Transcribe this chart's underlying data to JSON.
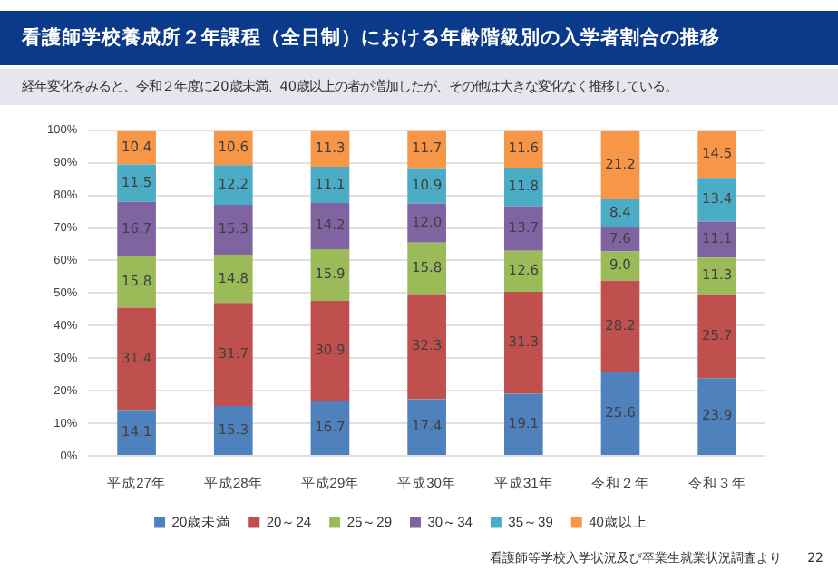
{
  "chart_data": {
    "type": "bar",
    "title": "看護師学校養成所２年課程（全日制）における年齢階級別の入学者割合の推移",
    "subtitle": "経年変化をみると、令和２年度に20歳未満、40歳以上の者が増加したが、その他は大きな変化なく推移している。",
    "categories": [
      "平成27年",
      "平成28年",
      "平成29年",
      "平成30年",
      "平成31年",
      "令和２年",
      "令和３年"
    ],
    "stacked": true,
    "grid": "y",
    "legend": "bottom",
    "ylim": [
      0,
      100
    ],
    "yticks": [
      {
        "value": 0,
        "label": "0%"
      },
      {
        "value": 10,
        "label": "10%"
      },
      {
        "value": 20,
        "label": "20%"
      },
      {
        "value": 30,
        "label": "30%"
      },
      {
        "value": 40,
        "label": "40%"
      },
      {
        "value": 50,
        "label": "50%"
      },
      {
        "value": 60,
        "label": "60%"
      },
      {
        "value": 70,
        "label": "70%"
      },
      {
        "value": 80,
        "label": "80%"
      },
      {
        "value": 90,
        "label": "90%"
      },
      {
        "value": 100,
        "label": "100%"
      }
    ],
    "series": [
      {
        "name": "20歳未満",
        "color": "#4f81bd",
        "values": [
          14.1,
          15.3,
          16.7,
          17.4,
          19.1,
          25.6,
          23.9
        ],
        "value_labels": [
          "14.1",
          "15.3",
          "16.7",
          "17.4",
          "19.1",
          "25.6",
          "23.9"
        ]
      },
      {
        "name": "20～24",
        "color": "#c0504d",
        "values": [
          31.4,
          31.7,
          30.9,
          32.3,
          31.3,
          28.2,
          25.7
        ],
        "value_labels": [
          "31.4",
          "31.7",
          "30.9",
          "32.3",
          "31.3",
          "28.2",
          "25.7"
        ]
      },
      {
        "name": "25～29",
        "color": "#9bbb59",
        "values": [
          15.8,
          14.8,
          15.9,
          15.8,
          12.6,
          9.0,
          11.3
        ],
        "value_labels": [
          "15.8",
          "14.8",
          "15.9",
          "15.8",
          "12.6",
          "9.0",
          "11.3"
        ]
      },
      {
        "name": "30～34",
        "color": "#8064a2",
        "values": [
          16.7,
          15.3,
          14.2,
          12.0,
          13.7,
          7.6,
          11.1
        ],
        "value_labels": [
          "16.7",
          "15.3",
          "14.2",
          "12.0",
          "13.7",
          "7.6",
          "11.1"
        ]
      },
      {
        "name": "35～39",
        "color": "#4bacc6",
        "values": [
          11.5,
          12.2,
          11.1,
          10.9,
          11.8,
          8.4,
          13.4
        ],
        "value_labels": [
          "11.5",
          "12.2",
          "11.1",
          "10.9",
          "11.8",
          "8.4",
          "13.4"
        ]
      },
      {
        "name": "40歳以上",
        "color": "#f79646",
        "values": [
          10.4,
          10.6,
          11.3,
          11.7,
          11.6,
          21.2,
          14.5
        ],
        "value_labels": [
          "10.4",
          "10.6",
          "11.3",
          "11.7",
          "11.6",
          "21.2",
          "14.5"
        ]
      }
    ],
    "annotations": [
      "看護師等学校入学状況及び卒業生就業状況調査より",
      "22"
    ]
  }
}
